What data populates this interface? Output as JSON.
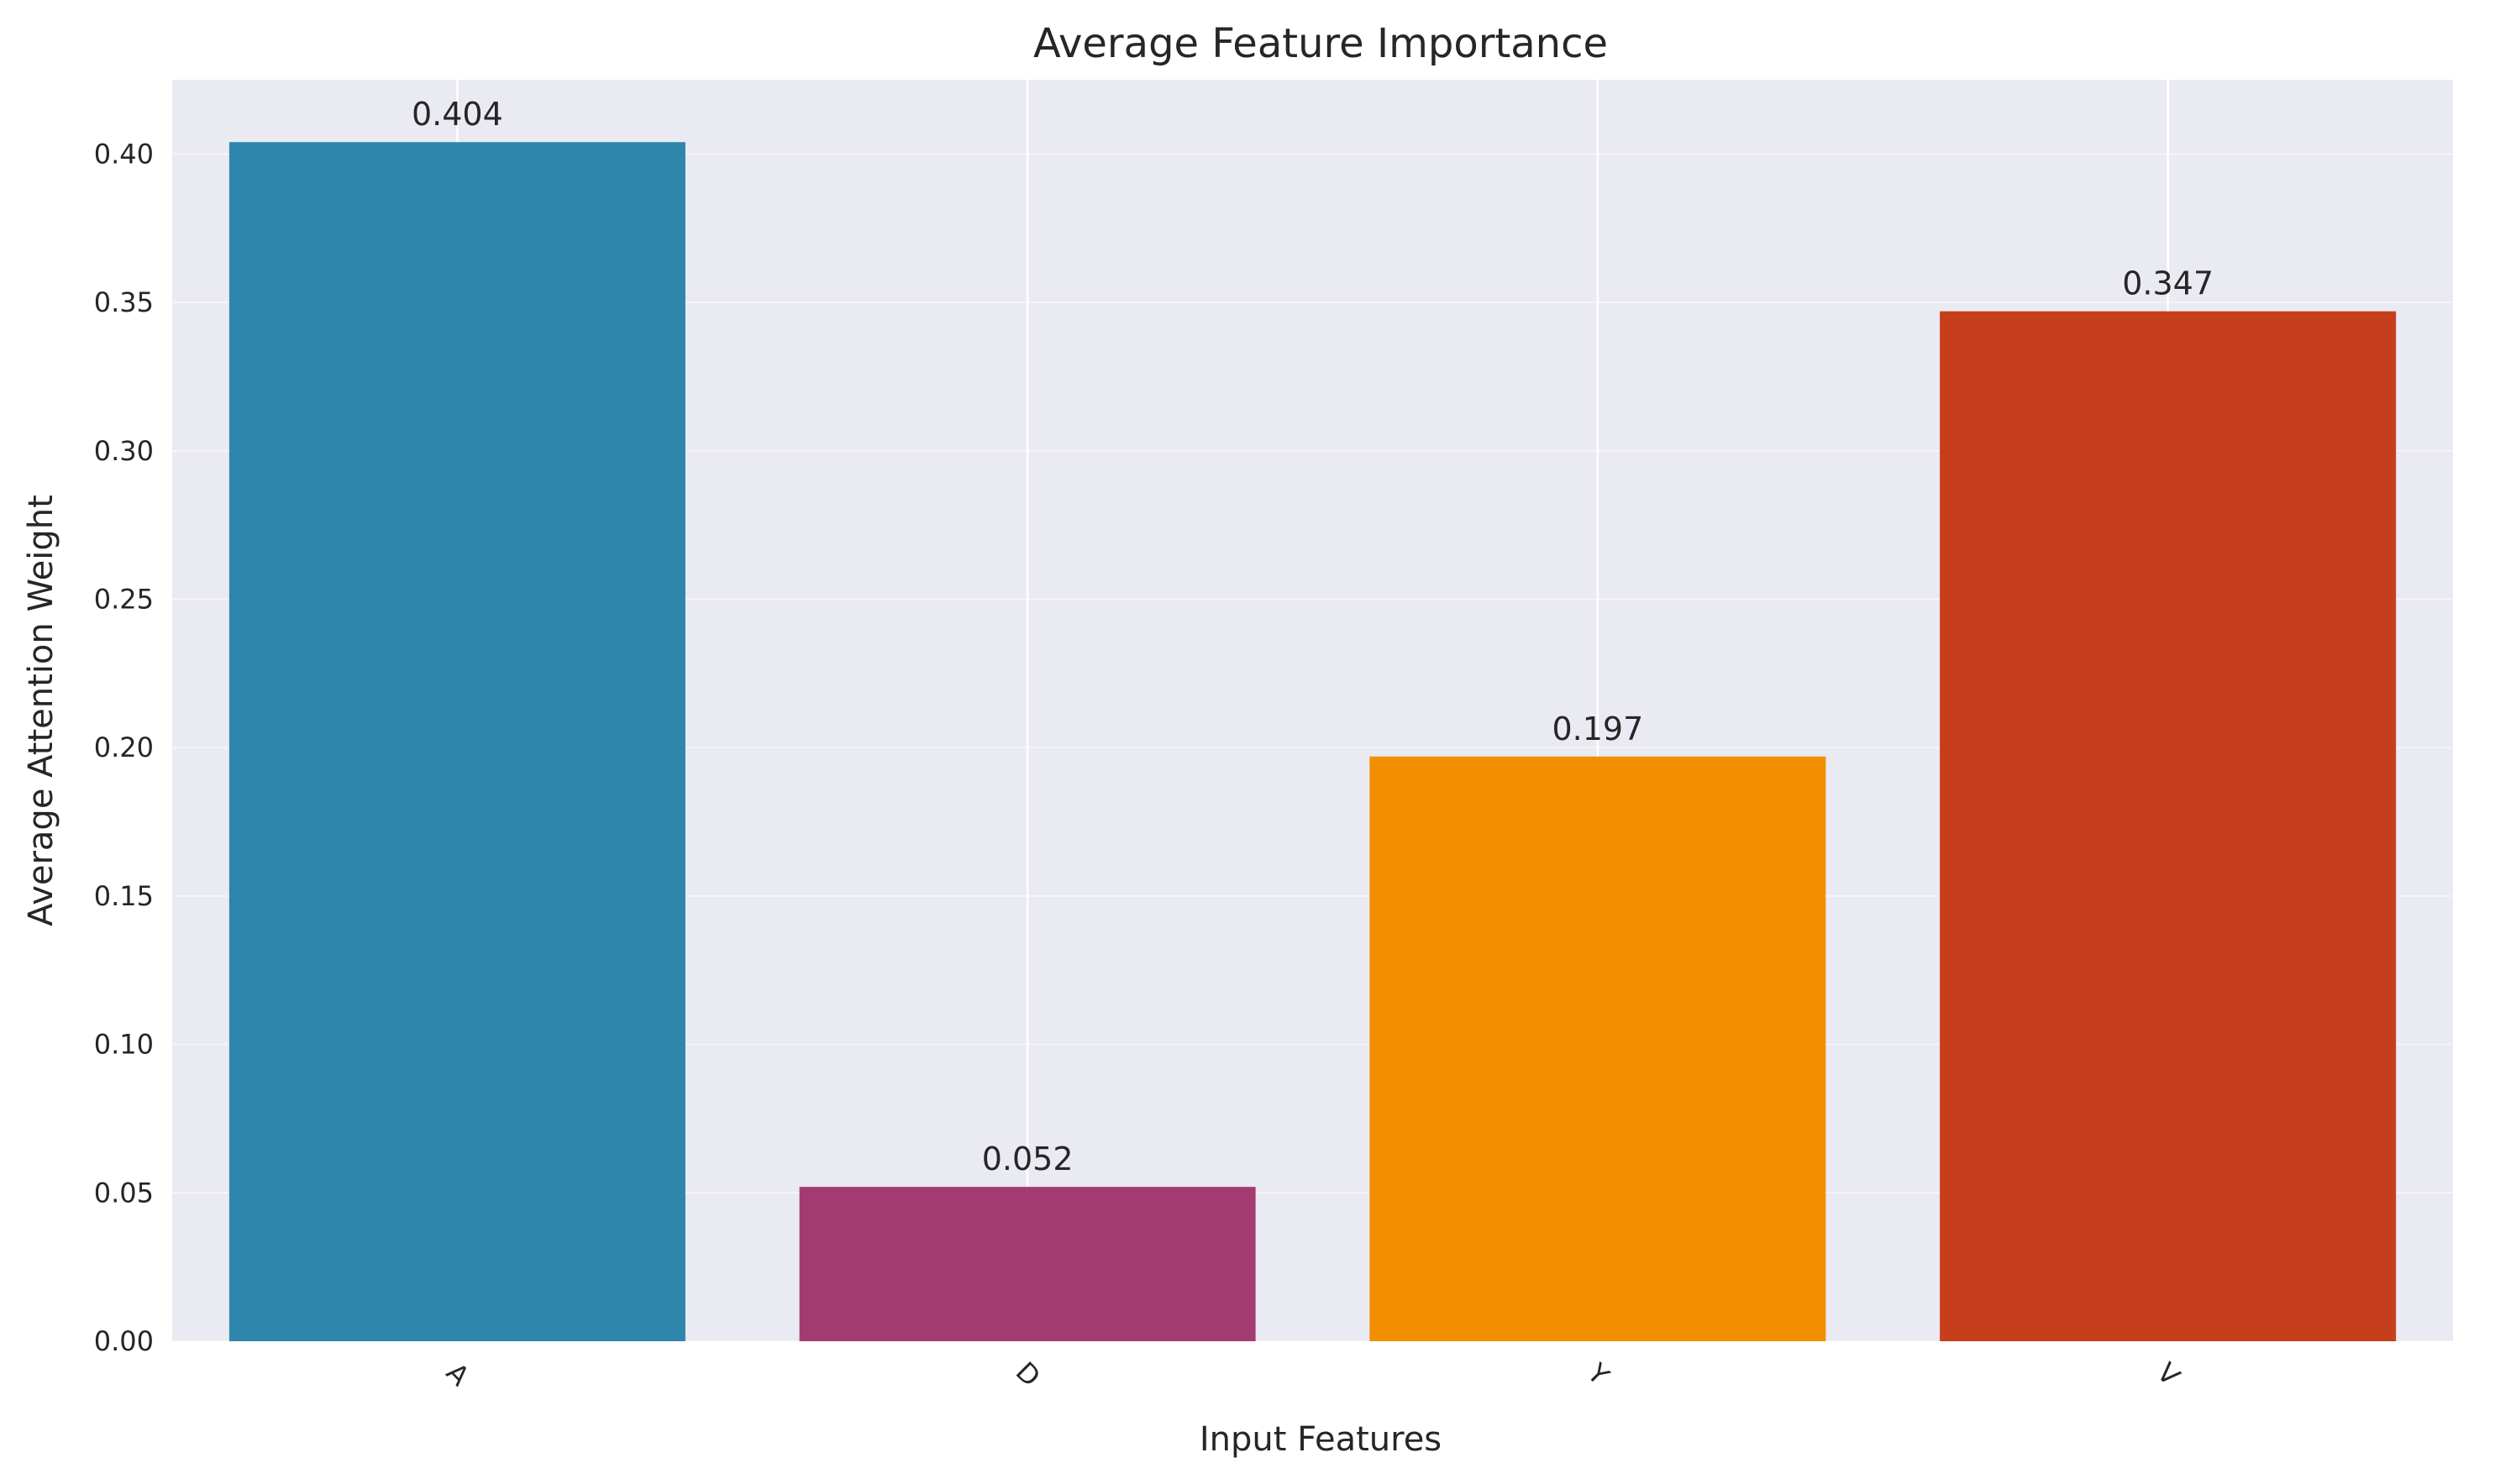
{
  "chart_data": {
    "type": "bar",
    "title": "Average Feature Importance",
    "xlabel": "Input Features",
    "ylabel": "Average Attention Weight",
    "categories": [
      "A",
      "D",
      "Y",
      "V"
    ],
    "values": [
      0.404,
      0.052,
      0.197,
      0.347
    ],
    "value_labels": [
      "0.404",
      "0.052",
      "0.197",
      "0.347"
    ],
    "colors": [
      "#2E86AB",
      "#A23B72",
      "#F18F01",
      "#C73E1D"
    ],
    "ylim": [
      0,
      0.425
    ],
    "yticks": [
      0.0,
      0.05,
      0.1,
      0.15,
      0.2,
      0.25,
      0.3,
      0.35,
      0.4
    ],
    "ytick_labels": [
      "0.00",
      "0.05",
      "0.10",
      "0.15",
      "0.20",
      "0.25",
      "0.30",
      "0.35",
      "0.40"
    ],
    "grid": true,
    "xtick_rotation": 45,
    "background": "#EAEAF2",
    "grid_color": "#FFFFFF"
  }
}
